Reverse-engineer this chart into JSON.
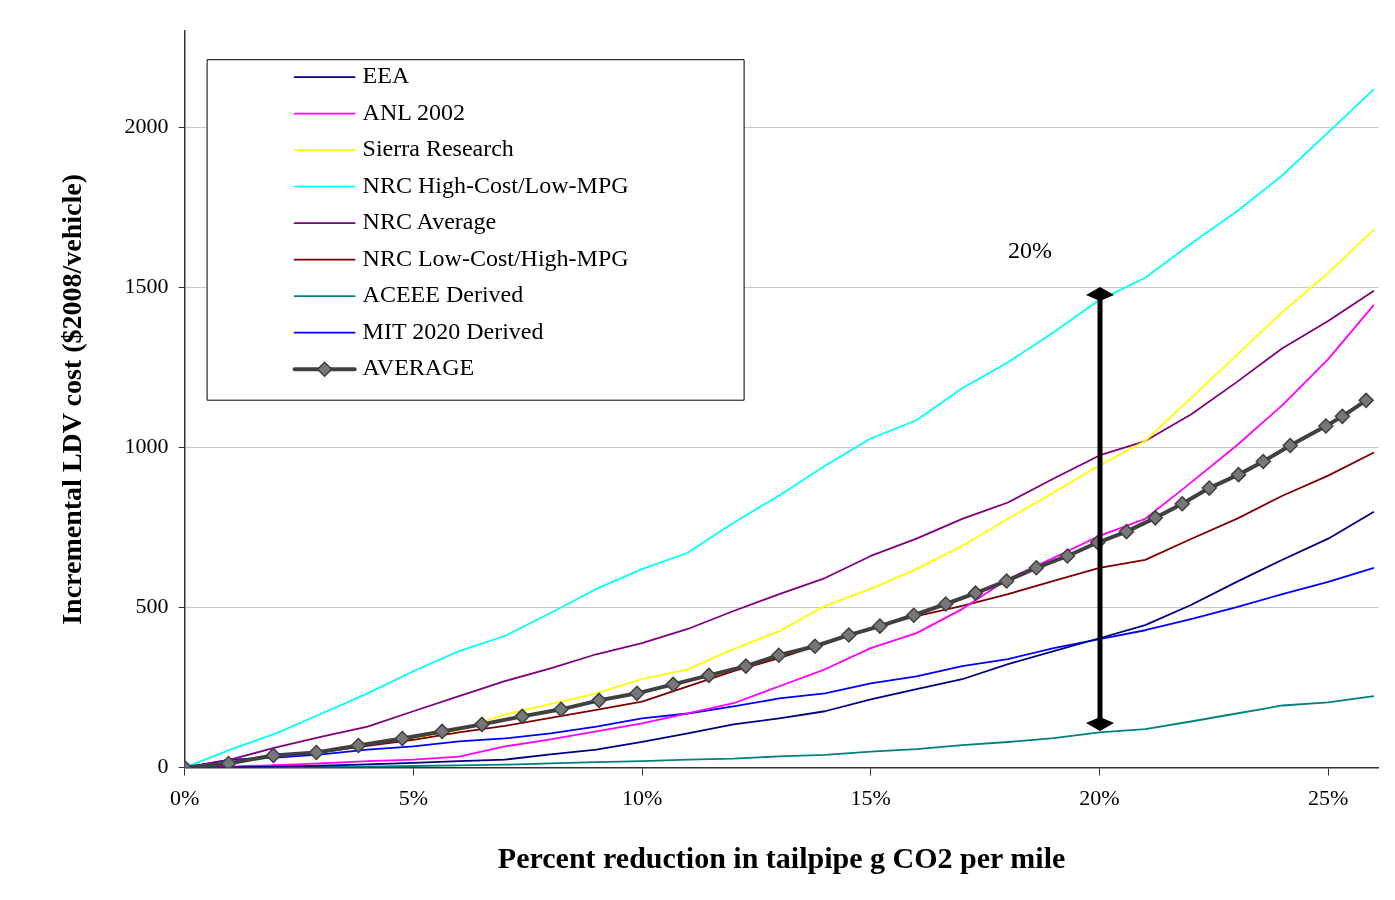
{
  "chart_data": {
    "type": "line",
    "xlabel": "Percent reduction in tailpipe g CO2 per mile",
    "ylabel": "Incremental LDV cost ($2008/vehicle)",
    "x": [
      0,
      1,
      2,
      3,
      4,
      5,
      6,
      7,
      8,
      9,
      10,
      11,
      12,
      13,
      14,
      15,
      16,
      17,
      18,
      19,
      20,
      21,
      22,
      23,
      24,
      25,
      26
    ],
    "xlim": [
      0,
      26.1
    ],
    "ylim": [
      0,
      2300
    ],
    "xticks": [
      {
        "value": 0,
        "label": "0%"
      },
      {
        "value": 5,
        "label": "5%"
      },
      {
        "value": 10,
        "label": "10%"
      },
      {
        "value": 15,
        "label": "15%"
      },
      {
        "value": 20,
        "label": "20%"
      },
      {
        "value": 25,
        "label": "25%"
      }
    ],
    "yticks": [
      0,
      500,
      1000,
      1500,
      2000
    ],
    "grid": "y",
    "legend": "top left",
    "marker": "none",
    "line_style": "solid",
    "annotations": [
      "20%"
    ],
    "series": [
      {
        "name": "EEA",
        "color": "#000080",
        "values": [
          0,
          1,
          3,
          6,
          10,
          15,
          20,
          25,
          41,
          56,
          80,
          107,
          135,
          154,
          176,
          213,
          245,
          276,
          323,
          364,
          404,
          445,
          508,
          580,
          649,
          715,
          799
        ]
      },
      {
        "name": "ANL 2002",
        "color": "#ff00ff",
        "values": [
          0,
          3,
          8,
          13,
          20,
          25,
          34,
          66,
          88,
          113,
          138,
          169,
          201,
          254,
          307,
          373,
          420,
          495,
          589,
          655,
          724,
          777,
          890,
          1006,
          1132,
          1276,
          1445
        ]
      },
      {
        "name": "Sierra Research",
        "color": "#ffff00",
        "values": [
          null,
          null,
          null,
          null,
          null,
          92,
          117,
          166,
          198,
          232,
          276,
          307,
          370,
          426,
          505,
          558,
          620,
          692,
          777,
          859,
          944,
          1020,
          1154,
          1288,
          1423,
          1545,
          1680
        ]
      },
      {
        "name": "NRC High-Cost/Low-MPG",
        "color": "#00ffff",
        "values": [
          0,
          56,
          107,
          169,
          232,
          301,
          364,
          411,
          483,
          558,
          620,
          671,
          765,
          850,
          943,
          1028,
          1085,
          1185,
          1266,
          1360,
          1461,
          1530,
          1636,
          1737,
          1850,
          1984,
          2119
        ]
      },
      {
        "name": "NRC Average",
        "color": "#800080",
        "values": [
          0,
          25,
          63,
          97,
          128,
          176,
          223,
          270,
          310,
          354,
          389,
          433,
          489,
          542,
          592,
          661,
          715,
          777,
          828,
          903,
          975,
          1020,
          1103,
          1204,
          1310,
          1395,
          1489
        ]
      },
      {
        "name": "NRC Low-Cost/High-MPG",
        "color": "#800000",
        "values": [
          null,
          null,
          null,
          48,
          68,
          87,
          110,
          130,
          155,
          180,
          206,
          254,
          301,
          342,
          389,
          436,
          473,
          505,
          542,
          583,
          624,
          649,
          714,
          777,
          849,
          912,
          984
        ]
      },
      {
        "name": "ACEEE Derived",
        "color": "#008080",
        "values": [
          0,
          0,
          1,
          2,
          3,
          5,
          7,
          9,
          13,
          17,
          20,
          25,
          28,
          35,
          40,
          50,
          58,
          70,
          80,
          92,
          110,
          120,
          144,
          169,
          194,
          204,
          223
        ]
      },
      {
        "name": "MIT 2020 Derived",
        "color": "#0000ff",
        "values": [
          0,
          25,
          31,
          41,
          56,
          66,
          82,
          91,
          107,
          128,
          154,
          169,
          191,
          216,
          232,
          263,
          285,
          317,
          339,
          373,
          401,
          429,
          464,
          501,
          542,
          580,
          624
        ]
      },
      {
        "name": "AVERAGE",
        "color": "#404040",
        "marker": "diamond",
        "x": [
          0,
          0.96,
          1.94,
          2.88,
          3.8,
          4.76,
          5.63,
          6.5,
          7.38,
          8.23,
          9.06,
          9.89,
          10.68,
          11.46,
          12.27,
          12.99,
          13.78,
          14.52,
          15.2,
          15.94,
          16.64,
          17.29,
          17.97,
          18.62,
          19.3,
          19.96,
          20.59,
          21.22,
          21.81,
          22.4,
          23.04,
          23.58,
          24.17,
          24.95,
          25.31,
          25.83
        ],
        "values": [
          0,
          13,
          38,
          47,
          69,
          91,
          113,
          135,
          160,
          182,
          210,
          232,
          260,
          288,
          317,
          351,
          379,
          414,
          442,
          476,
          511,
          545,
          583,
          624,
          661,
          703,
          737,
          780,
          824,
          873,
          915,
          956,
          1006,
          1067,
          1097,
          1147
        ]
      }
    ]
  }
}
